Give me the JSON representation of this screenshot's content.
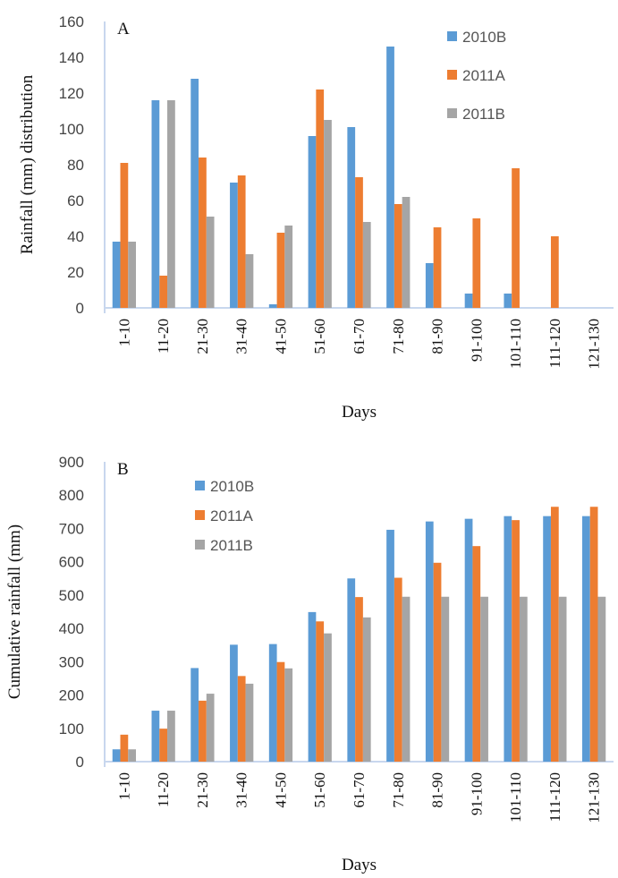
{
  "colors": {
    "2010B": "#5b9bd5",
    "2011A": "#ed7d31",
    "2011B": "#a5a5a5"
  },
  "chart_data": [
    {
      "type": "bar",
      "panel_label": "A",
      "xlabel": "Days",
      "ylabel": "Rainfall (mm) distribution",
      "ylim": [
        0,
        160
      ],
      "yticks": [
        0,
        20,
        40,
        60,
        80,
        100,
        120,
        140,
        160
      ],
      "categories": [
        "1-10",
        "11-20",
        "21-30",
        "31-40",
        "41-50",
        "51-60",
        "61-70",
        "71-80",
        "81-90",
        "91-100",
        "101-110",
        "111-120",
        "121-130"
      ],
      "series": [
        {
          "name": "2010B",
          "values": [
            37,
            116,
            128,
            70,
            2,
            96,
            101,
            146,
            25,
            8,
            8,
            0,
            0
          ]
        },
        {
          "name": "2011A",
          "values": [
            81,
            18,
            84,
            74,
            42,
            122,
            73,
            58,
            45,
            50,
            78,
            40,
            0
          ]
        },
        {
          "name": "2011B",
          "values": [
            37,
            116,
            51,
            30,
            46,
            105,
            48,
            62,
            0,
            0,
            0,
            0,
            0
          ]
        }
      ],
      "legend_position": "top-right",
      "grid": false
    },
    {
      "type": "bar",
      "panel_label": "B",
      "xlabel": "Days",
      "ylabel": "Cumulative rainfall (mm)",
      "ylim": [
        0,
        900
      ],
      "yticks": [
        0,
        100,
        200,
        300,
        400,
        500,
        600,
        700,
        800,
        900
      ],
      "categories": [
        "1-10",
        "11-20",
        "21-30",
        "31-40",
        "41-50",
        "51-60",
        "61-70",
        "71-80",
        "81-90",
        "91-100",
        "101-110",
        "111-120",
        "121-130"
      ],
      "series": [
        {
          "name": "2010B",
          "values": [
            37,
            153,
            281,
            351,
            353,
            449,
            550,
            696,
            721,
            729,
            737,
            737,
            737
          ]
        },
        {
          "name": "2011A",
          "values": [
            81,
            99,
            183,
            257,
            299,
            421,
            494,
            552,
            597,
            647,
            725,
            765,
            765
          ]
        },
        {
          "name": "2011B",
          "values": [
            37,
            153,
            204,
            234,
            280,
            385,
            433,
            495,
            495,
            495,
            495,
            495,
            495
          ]
        }
      ],
      "legend_position": "top-left",
      "grid": false
    }
  ]
}
